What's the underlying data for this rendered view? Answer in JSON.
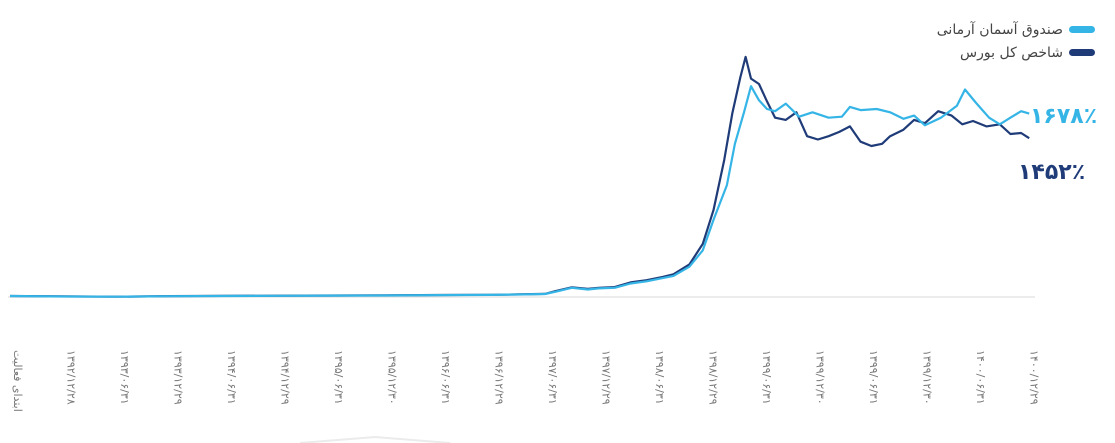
{
  "chart_data": {
    "type": "line",
    "legend": {
      "position": "top-right",
      "items": [
        {
          "label": "صندوق آسمان آرمانی",
          "color": "#35b4e6"
        },
        {
          "label": "شاخص کل بورس",
          "color": "#1f3b78"
        }
      ]
    },
    "end_labels": {
      "fund": "۱۶۷۸٪",
      "index": "۱۴۵۲٪"
    },
    "x_ticks": [
      "ابتدای فعالیت",
      "۱۳۹۲/۱۲/۲۸",
      "۱۳۹۳/۰۶/۳۱",
      "۱۳۹۳/۱۲/۲۹",
      "۱۳۹۴/۰۶/۳۱",
      "۱۳۹۴/۱۲/۲۹",
      "۱۳۹۵/۰۶/۳۱",
      "۱۳۹۵/۱۲/۳۰",
      "۱۳۹۶/۰۶/۳۱",
      "۱۳۹۶/۱۲/۲۹",
      "۱۳۹۷/۰۶/۳۱",
      "۱۳۹۷/۱۲/۲۹",
      "۱۳۹۸/۰۶/۳۱",
      "۱۳۹۸/۱۲/۲۹",
      "۱۳۹۹/۰۶/۳۱",
      "۱۳۹۹/۱۲/۳۰",
      "۱۳۹۹/۰۶/۳۱",
      "۱۳۹۹/۱۲/۳۰",
      "۱۴۰۰/۰۶/۳۱",
      "۱۴۰۰/۱۲/۲۹"
    ],
    "ylim": [
      0,
      2300
    ],
    "grid": false,
    "series": [
      {
        "name": "صندوق آسمان آرمانی",
        "color": "#35b4e6",
        "points": [
          [
            0,
            0
          ],
          [
            1,
            -5
          ],
          [
            2,
            -6
          ],
          [
            3,
            -2
          ],
          [
            4,
            0
          ],
          [
            5,
            2
          ],
          [
            6,
            4
          ],
          [
            7,
            5
          ],
          [
            8,
            8
          ],
          [
            9,
            10
          ],
          [
            9.5,
            14
          ],
          [
            10,
            18
          ],
          [
            10.2,
            40
          ],
          [
            10.5,
            75
          ],
          [
            10.8,
            60
          ],
          [
            11,
            70
          ],
          [
            11.3,
            75
          ],
          [
            11.6,
            115
          ],
          [
            11.9,
            135
          ],
          [
            12.2,
            165
          ],
          [
            12.4,
            185
          ],
          [
            12.7,
            270
          ],
          [
            12.95,
            420
          ],
          [
            13.15,
            700
          ],
          [
            13.4,
            1020
          ],
          [
            13.55,
            1400
          ],
          [
            13.72,
            1690
          ],
          [
            13.85,
            1930
          ],
          [
            14.0,
            1800
          ],
          [
            14.15,
            1720
          ],
          [
            14.3,
            1700
          ],
          [
            14.5,
            1770
          ],
          [
            14.75,
            1650
          ],
          [
            15.0,
            1690
          ],
          [
            15.3,
            1640
          ],
          [
            15.55,
            1650
          ],
          [
            15.7,
            1740
          ],
          [
            15.9,
            1710
          ],
          [
            16.2,
            1720
          ],
          [
            16.45,
            1690
          ],
          [
            16.7,
            1630
          ],
          [
            16.9,
            1660
          ],
          [
            17.1,
            1570
          ],
          [
            17.4,
            1640
          ],
          [
            17.7,
            1750
          ],
          [
            17.85,
            1900
          ],
          [
            18.05,
            1780
          ],
          [
            18.3,
            1640
          ],
          [
            18.5,
            1580
          ],
          [
            18.7,
            1640
          ],
          [
            18.9,
            1700
          ],
          [
            19.05,
            1678
          ]
        ]
      },
      {
        "name": "شاخص کل بورس",
        "color": "#1f3b78",
        "points": [
          [
            0,
            0
          ],
          [
            1,
            -4
          ],
          [
            2,
            -6
          ],
          [
            3,
            -1
          ],
          [
            4,
            1
          ],
          [
            5,
            3
          ],
          [
            6,
            5
          ],
          [
            7,
            6
          ],
          [
            8,
            9
          ],
          [
            9,
            11
          ],
          [
            9.5,
            15
          ],
          [
            10,
            19
          ],
          [
            10.2,
            45
          ],
          [
            10.5,
            80
          ],
          [
            10.8,
            65
          ],
          [
            11,
            75
          ],
          [
            11.3,
            82
          ],
          [
            11.6,
            125
          ],
          [
            11.9,
            145
          ],
          [
            12.2,
            175
          ],
          [
            12.4,
            200
          ],
          [
            12.7,
            290
          ],
          [
            12.95,
            480
          ],
          [
            13.15,
            790
          ],
          [
            13.35,
            1250
          ],
          [
            13.5,
            1680
          ],
          [
            13.65,
            2010
          ],
          [
            13.75,
            2200
          ],
          [
            13.85,
            2000
          ],
          [
            14.0,
            1950
          ],
          [
            14.15,
            1790
          ],
          [
            14.3,
            1640
          ],
          [
            14.5,
            1620
          ],
          [
            14.7,
            1690
          ],
          [
            14.9,
            1470
          ],
          [
            15.1,
            1440
          ],
          [
            15.3,
            1470
          ],
          [
            15.5,
            1510
          ],
          [
            15.7,
            1560
          ],
          [
            15.9,
            1420
          ],
          [
            16.1,
            1380
          ],
          [
            16.3,
            1400
          ],
          [
            16.45,
            1470
          ],
          [
            16.7,
            1530
          ],
          [
            16.9,
            1620
          ],
          [
            17.1,
            1590
          ],
          [
            17.35,
            1700
          ],
          [
            17.6,
            1660
          ],
          [
            17.8,
            1580
          ],
          [
            18.0,
            1610
          ],
          [
            18.25,
            1560
          ],
          [
            18.5,
            1580
          ],
          [
            18.7,
            1490
          ],
          [
            18.9,
            1500
          ],
          [
            19.05,
            1452
          ]
        ]
      }
    ]
  }
}
